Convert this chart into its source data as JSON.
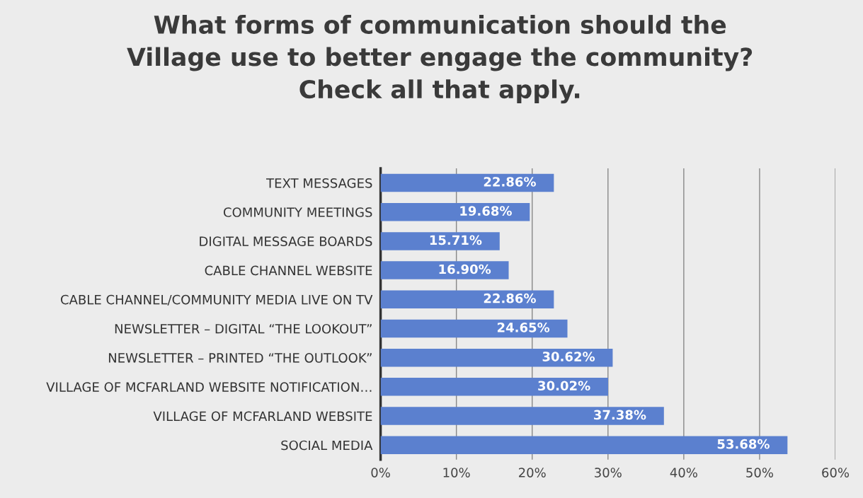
{
  "chart_data": {
    "type": "bar",
    "orientation": "horizontal",
    "title": "What forms of communication should the\nVillage use to better engage the community?\nCheck all that apply.",
    "categories": [
      "TEXT MESSAGES",
      "COMMUNITY MEETINGS",
      "DIGITAL MESSAGE BOARDS",
      "CABLE CHANNEL WEBSITE",
      "CABLE CHANNEL/COMMUNITY MEDIA LIVE ON TV",
      "NEWSLETTER – DIGITAL “THE LOOKOUT”",
      "NEWSLETTER – PRINTED “THE OUTLOOK”",
      "VILLAGE OF MCFARLAND WEBSITE NOTIFICATION…",
      "VILLAGE OF MCFARLAND WEBSITE",
      "SOCIAL MEDIA"
    ],
    "values": [
      22.86,
      19.68,
      15.71,
      16.9,
      22.86,
      24.65,
      30.62,
      30.02,
      37.38,
      53.68
    ],
    "value_labels": [
      "22.86%",
      "19.68%",
      "15.71%",
      "16.90%",
      "22.86%",
      "24.65%",
      "30.62%",
      "30.02%",
      "37.38%",
      "53.68%"
    ],
    "color": "#5b80cf",
    "xlim": [
      0,
      60
    ],
    "xticks": [
      {
        "value": 0,
        "label": "0%"
      },
      {
        "value": 10,
        "label": "10%"
      },
      {
        "value": 20,
        "label": "20%"
      },
      {
        "value": 30,
        "label": "30%"
      },
      {
        "value": 40,
        "label": "40%"
      },
      {
        "value": 50,
        "label": "50%"
      },
      {
        "value": 60,
        "label": "60%"
      }
    ],
    "grid": "x"
  }
}
